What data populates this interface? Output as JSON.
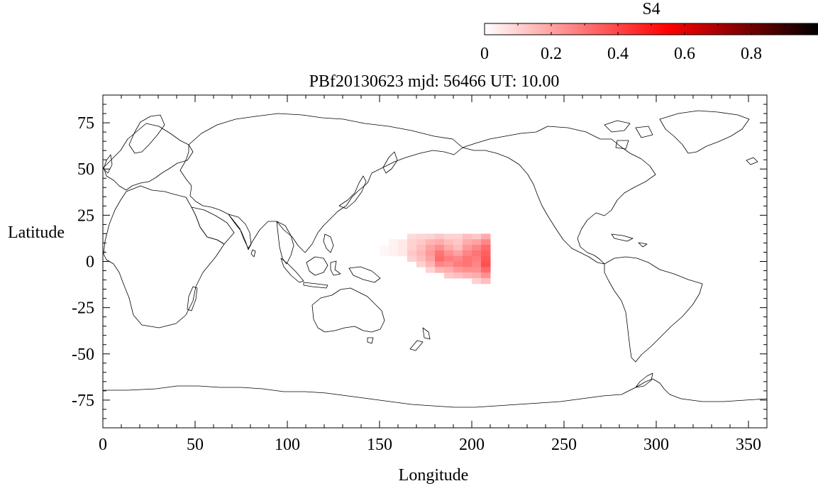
{
  "title": "PBf20130623  mjd: 56466  UT:  10.00",
  "chart_data": {
    "type": "heatmap",
    "title": "PBf20130623  mjd: 56466  UT:  10.00",
    "xlabel": "Longitude",
    "ylabel": "Latitude",
    "xlim": [
      0,
      360
    ],
    "ylim": [
      -90,
      90
    ],
    "xticks": [
      0,
      50,
      100,
      150,
      200,
      250,
      300,
      350
    ],
    "yticks": [
      75,
      50,
      25,
      0,
      -25,
      -50,
      -75
    ],
    "xtick_labels": [
      "0",
      "50",
      "100",
      "150",
      "200",
      "250",
      "300",
      "350"
    ],
    "ytick_labels": [
      "75",
      "50",
      "25",
      "0",
      "-25",
      "-50",
      "-75"
    ],
    "colorbar": {
      "label": "S4",
      "min": 0,
      "max": 1,
      "ticks": [
        0,
        0.2,
        0.4,
        0.6,
        0.8
      ],
      "tick_labels": [
        "0",
        "0.2",
        "0.4",
        "0.6",
        "0.8"
      ],
      "colormap": [
        "#ffffff",
        "#ff0000",
        "#000000"
      ]
    },
    "grid_lon_step": 5,
    "grid_lat_step": 3,
    "cells": [
      {
        "lon": 150,
        "lat": 6,
        "value": 0.02
      },
      {
        "lon": 150,
        "lat": 3,
        "value": 0.02
      },
      {
        "lon": 155,
        "lat": 9,
        "value": 0.03
      },
      {
        "lon": 155,
        "lat": 6,
        "value": 0.03
      },
      {
        "lon": 155,
        "lat": 3,
        "value": 0.03
      },
      {
        "lon": 160,
        "lat": 9,
        "value": 0.05
      },
      {
        "lon": 160,
        "lat": 6,
        "value": 0.05
      },
      {
        "lon": 160,
        "lat": 3,
        "value": 0.05
      },
      {
        "lon": 165,
        "lat": 12,
        "value": 0.08
      },
      {
        "lon": 165,
        "lat": 9,
        "value": 0.1
      },
      {
        "lon": 165,
        "lat": 6,
        "value": 0.1
      },
      {
        "lon": 165,
        "lat": 3,
        "value": 0.12
      },
      {
        "lon": 165,
        "lat": 0,
        "value": 0.1
      },
      {
        "lon": 170,
        "lat": 12,
        "value": 0.09
      },
      {
        "lon": 170,
        "lat": 9,
        "value": 0.12
      },
      {
        "lon": 170,
        "lat": 6,
        "value": 0.14
      },
      {
        "lon": 170,
        "lat": 3,
        "value": 0.16
      },
      {
        "lon": 170,
        "lat": 0,
        "value": 0.14
      },
      {
        "lon": 170,
        "lat": -3,
        "value": 0.1
      },
      {
        "lon": 175,
        "lat": 12,
        "value": 0.1
      },
      {
        "lon": 175,
        "lat": 9,
        "value": 0.16
      },
      {
        "lon": 175,
        "lat": 6,
        "value": 0.2
      },
      {
        "lon": 175,
        "lat": 3,
        "value": 0.22
      },
      {
        "lon": 175,
        "lat": 0,
        "value": 0.2
      },
      {
        "lon": 175,
        "lat": -3,
        "value": 0.16
      },
      {
        "lon": 175,
        "lat": -6,
        "value": 0.1
      },
      {
        "lon": 180,
        "lat": 12,
        "value": 0.12
      },
      {
        "lon": 180,
        "lat": 9,
        "value": 0.18
      },
      {
        "lon": 180,
        "lat": 6,
        "value": 0.24
      },
      {
        "lon": 180,
        "lat": 3,
        "value": 0.3
      },
      {
        "lon": 180,
        "lat": 0,
        "value": 0.32
      },
      {
        "lon": 180,
        "lat": -3,
        "value": 0.26
      },
      {
        "lon": 180,
        "lat": -6,
        "value": 0.16
      },
      {
        "lon": 185,
        "lat": 12,
        "value": 0.1
      },
      {
        "lon": 185,
        "lat": 9,
        "value": 0.14
      },
      {
        "lon": 185,
        "lat": 6,
        "value": 0.18
      },
      {
        "lon": 185,
        "lat": 3,
        "value": 0.24
      },
      {
        "lon": 185,
        "lat": 0,
        "value": 0.28
      },
      {
        "lon": 185,
        "lat": -3,
        "value": 0.24
      },
      {
        "lon": 185,
        "lat": -6,
        "value": 0.18
      },
      {
        "lon": 185,
        "lat": -9,
        "value": 0.12
      },
      {
        "lon": 190,
        "lat": 12,
        "value": 0.1
      },
      {
        "lon": 190,
        "lat": 9,
        "value": 0.12
      },
      {
        "lon": 190,
        "lat": 6,
        "value": 0.14
      },
      {
        "lon": 190,
        "lat": 3,
        "value": 0.2
      },
      {
        "lon": 190,
        "lat": 0,
        "value": 0.26
      },
      {
        "lon": 190,
        "lat": -3,
        "value": 0.28
      },
      {
        "lon": 190,
        "lat": -6,
        "value": 0.22
      },
      {
        "lon": 190,
        "lat": -9,
        "value": 0.14
      },
      {
        "lon": 195,
        "lat": 12,
        "value": 0.14
      },
      {
        "lon": 195,
        "lat": 9,
        "value": 0.18
      },
      {
        "lon": 195,
        "lat": 6,
        "value": 0.22
      },
      {
        "lon": 195,
        "lat": 3,
        "value": 0.26
      },
      {
        "lon": 195,
        "lat": 0,
        "value": 0.3
      },
      {
        "lon": 195,
        "lat": -3,
        "value": 0.3
      },
      {
        "lon": 195,
        "lat": -6,
        "value": 0.24
      },
      {
        "lon": 195,
        "lat": -9,
        "value": 0.16
      },
      {
        "lon": 200,
        "lat": 12,
        "value": 0.12
      },
      {
        "lon": 200,
        "lat": 9,
        "value": 0.2
      },
      {
        "lon": 200,
        "lat": 6,
        "value": 0.26
      },
      {
        "lon": 200,
        "lat": 3,
        "value": 0.3
      },
      {
        "lon": 200,
        "lat": 0,
        "value": 0.28
      },
      {
        "lon": 200,
        "lat": -3,
        "value": 0.26
      },
      {
        "lon": 200,
        "lat": -6,
        "value": 0.24
      },
      {
        "lon": 200,
        "lat": -9,
        "value": 0.18
      },
      {
        "lon": 200,
        "lat": -12,
        "value": 0.1
      },
      {
        "lon": 205,
        "lat": 12,
        "value": 0.18
      },
      {
        "lon": 205,
        "lat": 9,
        "value": 0.26
      },
      {
        "lon": 205,
        "lat": 6,
        "value": 0.32
      },
      {
        "lon": 205,
        "lat": 3,
        "value": 0.34
      },
      {
        "lon": 205,
        "lat": 0,
        "value": 0.36
      },
      {
        "lon": 205,
        "lat": -3,
        "value": 0.38
      },
      {
        "lon": 205,
        "lat": -6,
        "value": 0.32
      },
      {
        "lon": 205,
        "lat": -9,
        "value": 0.24
      },
      {
        "lon": 205,
        "lat": -12,
        "value": 0.14
      }
    ]
  }
}
